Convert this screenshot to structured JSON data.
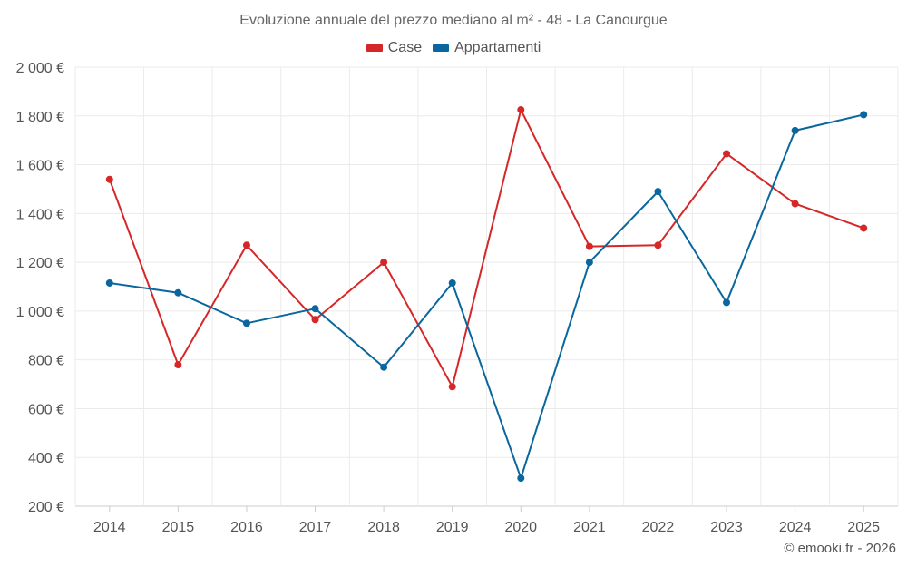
{
  "chart_data": {
    "type": "line",
    "title": "Evoluzione annuale del prezzo mediano al m² - 48 - La Canourgue",
    "xlabel": "",
    "ylabel": "",
    "categories": [
      "2014",
      "2015",
      "2016",
      "2017",
      "2018",
      "2019",
      "2020",
      "2021",
      "2022",
      "2023",
      "2024",
      "2025"
    ],
    "ylim": [
      200,
      2000
    ],
    "yticks": [
      200,
      400,
      600,
      800,
      1000,
      1200,
      1400,
      1600,
      1800,
      2000
    ],
    "ytick_labels": [
      "200 €",
      "400 €",
      "600 €",
      "800 €",
      "1 000 €",
      "1 200 €",
      "1 400 €",
      "1 600 €",
      "1 800 €",
      "2 000 €"
    ],
    "grid": true,
    "legend_position": "top-center",
    "series": [
      {
        "name": "Case",
        "color": "#d62728",
        "values": [
          1540,
          780,
          1270,
          965,
          1200,
          690,
          1825,
          1265,
          1270,
          1645,
          1440,
          1340
        ]
      },
      {
        "name": "Appartamenti",
        "color": "#09679d",
        "values": [
          1115,
          1075,
          950,
          1010,
          770,
          1115,
          315,
          1200,
          1490,
          1035,
          1740,
          1805
        ]
      }
    ]
  },
  "credit": "© emooki.fr - 2026"
}
